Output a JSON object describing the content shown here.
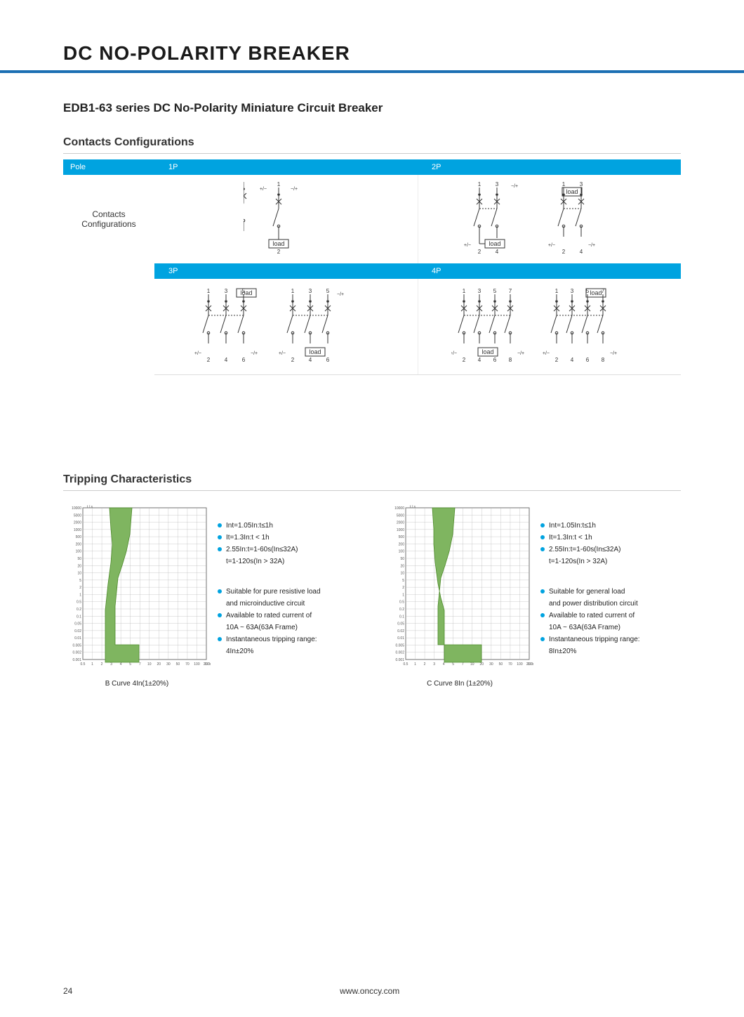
{
  "page_number": "24",
  "footer_url": "www.onccy.com",
  "main_title": "DC NO-POLARITY BREAKER",
  "subtitle": "EDB1-63 series DC No-Polarity  Miniature Circuit Breaker",
  "section_contacts": "Contacts  Configurations",
  "section_tripping": "Tripping Characteristics",
  "rowlabel": "Contacts\nConfigurations",
  "poles": {
    "lead": "Pole",
    "p1": "1P",
    "p2": "2P",
    "p3": "3P",
    "p4": "4P"
  },
  "load_text": "load",
  "polarity": {
    "pm": "+/−",
    "mp": "−/+"
  },
  "colors": {
    "accent": "#00a3e0",
    "rule": "#1b6fb3",
    "curve_fill": "#7fb560",
    "curve_stroke": "#4d8a2a",
    "grid": "#888888",
    "text": "#222222"
  },
  "chart_axes": {
    "y_labels": [
      "10000",
      "5000",
      "2000",
      "1000",
      "500",
      "200",
      "100",
      "50",
      "20",
      "10",
      "5",
      "2",
      "1",
      "0.5",
      "0.2",
      "0.1",
      "0.05",
      "0.02",
      "0.01",
      "0.005",
      "0.002",
      "0.001"
    ],
    "x_labels": [
      "0.5",
      "1",
      "2",
      "3",
      "4",
      "5",
      "7",
      "10",
      "20",
      "30",
      "50",
      "70",
      "100",
      "200"
    ],
    "y_unit": "t / s",
    "x_unit": "I / In"
  },
  "chart_b": {
    "caption": "B Curve 4In(1±20%)",
    "poly": "38,0 70,0 67,38 62,62 56,82 50,100 46,140 46,195 80,195 80,220 32,220 32,146 36,108 40,78 42,52 40,30 38,0"
  },
  "chart_c": {
    "caption": "C Curve 8In (1±20%)",
    "poly": "38,0 70,0 67,38 62,62 56,82 50,100 46,140 46,195 108,195 108,220 55,220 55,146 50,128 46,108 42,78 40,52 40,30 38,0"
  },
  "bullets_common": [
    "Int=1.05In:t≤1h",
    "It=1.3In:t < 1h",
    "2.55In:t=1-60s(In≤32A)"
  ],
  "bullets_common_sub": "t=1-120s(In > 32A)",
  "bullets_b": [
    "Suitable for pure resistive load",
    "and microinductive circuit",
    "Available to rated current of",
    "10A ~ 63A(63A Frame)",
    "Instantaneous tripping range:",
    "4In±20%"
  ],
  "bullets_c": [
    "Suitable for general load",
    "and power distribution circuit",
    " Available to rated current of",
    "10A ~ 63A(63A Frame)",
    "Instantaneous tripping range:",
    "8In±20%"
  ]
}
